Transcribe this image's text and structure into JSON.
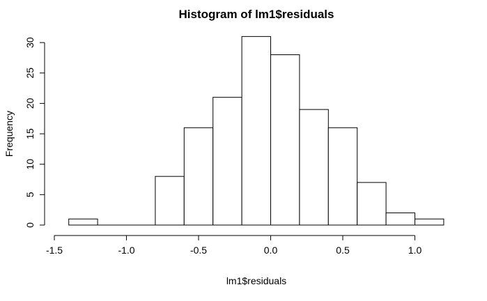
{
  "chart_data": {
    "type": "bar",
    "title": "Histogram of lm1$residuals",
    "xlabel": "lm1$residuals",
    "ylabel": "Frequency",
    "bins": [
      {
        "start": -1.4,
        "end": -1.2,
        "count": 1
      },
      {
        "start": -1.2,
        "end": -1.0,
        "count": 0
      },
      {
        "start": -1.0,
        "end": -0.8,
        "count": 0
      },
      {
        "start": -0.8,
        "end": -0.6,
        "count": 8
      },
      {
        "start": -0.6,
        "end": -0.4,
        "count": 16
      },
      {
        "start": -0.4,
        "end": -0.2,
        "count": 21
      },
      {
        "start": -0.2,
        "end": 0.0,
        "count": 31
      },
      {
        "start": 0.0,
        "end": 0.2,
        "count": 28
      },
      {
        "start": 0.2,
        "end": 0.4,
        "count": 19
      },
      {
        "start": 0.4,
        "end": 0.6,
        "count": 16
      },
      {
        "start": 0.6,
        "end": 0.8,
        "count": 7
      },
      {
        "start": 0.8,
        "end": 1.0,
        "count": 2
      },
      {
        "start": 1.0,
        "end": 1.2,
        "count": 1
      }
    ],
    "x_ticks": [
      -1.5,
      -1.0,
      -0.5,
      0.0,
      0.5,
      1.0
    ],
    "x_tick_labels": [
      "-1.5",
      "-1.0",
      "-0.5",
      "0.0",
      "0.5",
      "1.0"
    ],
    "y_ticks": [
      0,
      5,
      10,
      15,
      20,
      25,
      30
    ],
    "y_tick_labels": [
      "0",
      "5",
      "10",
      "15",
      "20",
      "25",
      "30"
    ],
    "xlim": [
      -1.5,
      1.2
    ],
    "ylim": [
      0,
      31
    ],
    "grid": false,
    "bar_fill": "#ffffff",
    "bar_stroke": "#000000"
  }
}
